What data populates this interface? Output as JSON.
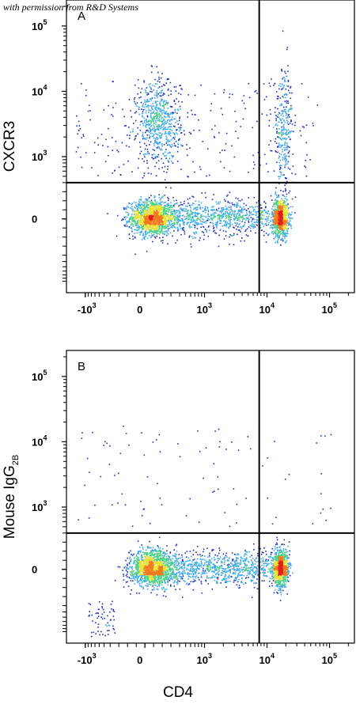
{
  "credit": "with permission from R&D Systems",
  "chart_data": [
    {
      "type": "scatter",
      "panel_label": "A",
      "xlabel": "CD4",
      "ylabel": "CXCR3",
      "y_subscript": "",
      "x_scale": "biexponential",
      "y_scale": "biexponential",
      "x_ticks": [
        {
          "base": "-10",
          "exp": "3"
        },
        {
          "base": "0",
          "exp": ""
        },
        {
          "base": "10",
          "exp": "3"
        },
        {
          "base": "10",
          "exp": "4"
        },
        {
          "base": "10",
          "exp": "5"
        }
      ],
      "y_ticks": [
        {
          "base": "0",
          "exp": ""
        },
        {
          "base": "10",
          "exp": "3"
        },
        {
          "base": "10",
          "exp": "4"
        },
        {
          "base": "10",
          "exp": "5"
        }
      ],
      "gates": {
        "x": 7500,
        "y": 400
      },
      "populations": [
        {
          "name": "CD4- CXCR3-",
          "x_center": 100,
          "y_center": 20,
          "density": "high"
        },
        {
          "name": "CD4+ CXCR3-",
          "x_center": 15000,
          "y_center": 20,
          "density": "high"
        },
        {
          "name": "CD4- CXCR3+",
          "x_center": 100,
          "y_center": 3500,
          "density": "medium"
        },
        {
          "name": "CD4+ CXCR3+",
          "x_center": 16000,
          "y_center": 3000,
          "density": "low"
        }
      ],
      "grid": false,
      "colormap": [
        "#1b2fb5",
        "#3fa8e6",
        "#4fd08a",
        "#e7e23a",
        "#f07a1f",
        "#e01f1f"
      ]
    },
    {
      "type": "scatter",
      "panel_label": "B",
      "xlabel": "CD4",
      "ylabel": "Mouse IgG",
      "y_subscript": "2B",
      "x_scale": "biexponential",
      "y_scale": "biexponential",
      "x_ticks": [
        {
          "base": "-10",
          "exp": "3"
        },
        {
          "base": "0",
          "exp": ""
        },
        {
          "base": "10",
          "exp": "3"
        },
        {
          "base": "10",
          "exp": "4"
        },
        {
          "base": "10",
          "exp": "5"
        }
      ],
      "y_ticks": [
        {
          "base": "0",
          "exp": ""
        },
        {
          "base": "10",
          "exp": "3"
        },
        {
          "base": "10",
          "exp": "4"
        },
        {
          "base": "10",
          "exp": "5"
        }
      ],
      "gates": {
        "x": 7500,
        "y": 400
      },
      "populations": [
        {
          "name": "CD4- isotype",
          "x_center": 100,
          "y_center": 20,
          "density": "high"
        },
        {
          "name": "CD4+ isotype",
          "x_center": 15000,
          "y_center": 20,
          "density": "high"
        }
      ],
      "grid": false,
      "colormap": [
        "#1b2fb5",
        "#3fa8e6",
        "#4fd08a",
        "#e7e23a",
        "#f07a1f",
        "#e01f1f"
      ]
    }
  ]
}
